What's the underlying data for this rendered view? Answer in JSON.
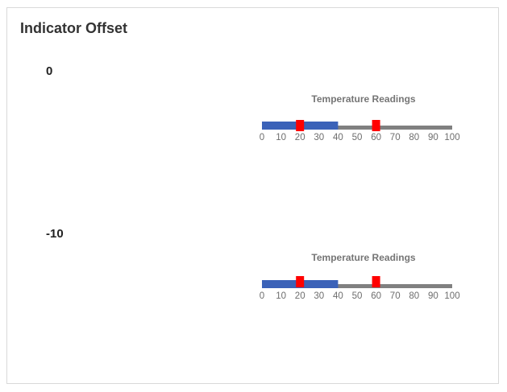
{
  "page": {
    "title": "Indicator Offset"
  },
  "gauges": [
    {
      "offset_label": "0",
      "title": "Temperature Readings",
      "min": 0,
      "max": 100,
      "interval": 10,
      "tick_labels": [
        "0",
        "10",
        "20",
        "30",
        "40",
        "50",
        "60",
        "70",
        "80",
        "90",
        "100"
      ],
      "range": {
        "start": 0,
        "end": 40,
        "color": "#3b62b8"
      },
      "pointers": [
        20,
        60
      ],
      "pointer_color": "#ff0000",
      "track_color": "#808080",
      "indicator_offset": 0
    },
    {
      "offset_label": "-10",
      "title": "Temperature Readings",
      "min": 0,
      "max": 100,
      "interval": 10,
      "tick_labels": [
        "0",
        "10",
        "20",
        "30",
        "40",
        "50",
        "60",
        "70",
        "80",
        "90",
        "100"
      ],
      "range": {
        "start": 0,
        "end": 40,
        "color": "#3b62b8"
      },
      "pointers": [
        20,
        60
      ],
      "pointer_color": "#ff0000",
      "track_color": "#808080",
      "indicator_offset": -10
    }
  ]
}
